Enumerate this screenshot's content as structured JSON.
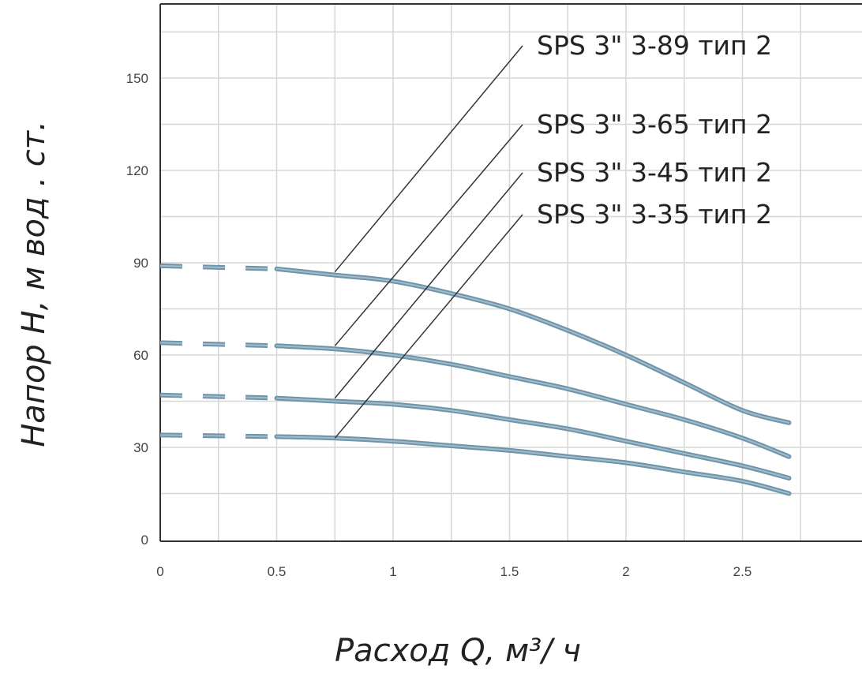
{
  "chart_data": {
    "type": "line",
    "title": "",
    "xlabel": "Расход  Q,  м³/ ч",
    "ylabel": "Напор  Н,  м вод . ст.",
    "xlim": [
      0,
      3
    ],
    "ylim": [
      0,
      175
    ],
    "x_ticks": [
      "0",
      "0.5",
      "1",
      "1.5",
      "2",
      "2.5"
    ],
    "y_ticks": [
      "0",
      "30",
      "60",
      "90",
      "120",
      "150"
    ],
    "grid": true,
    "dashed_segment_x": [
      0,
      0.5
    ],
    "colors": {
      "curve": "#6f93a8",
      "curve_core": "#9fbccc",
      "grid": "#d6d6d6",
      "axis": "#333333",
      "leader": "#333333"
    },
    "series": [
      {
        "name": "SPS 3\" 3-89 тип 2",
        "x": [
          0,
          0.5,
          0.75,
          1.0,
          1.25,
          1.5,
          1.75,
          2.0,
          2.25,
          2.5,
          2.7
        ],
        "y": [
          89,
          88,
          86,
          84,
          80,
          75,
          68,
          60,
          51,
          42,
          38
        ]
      },
      {
        "name": "SPS 3\" 3-65 тип 2",
        "x": [
          0,
          0.5,
          0.75,
          1.0,
          1.25,
          1.5,
          1.75,
          2.0,
          2.25,
          2.5,
          2.7
        ],
        "y": [
          64,
          63,
          62,
          60,
          57,
          53,
          49,
          44,
          39,
          33,
          27
        ]
      },
      {
        "name": "SPS 3\" 3-45 тип 2",
        "x": [
          0,
          0.5,
          0.75,
          1.0,
          1.25,
          1.5,
          1.75,
          2.0,
          2.25,
          2.5,
          2.7
        ],
        "y": [
          47,
          46,
          45,
          44,
          42,
          39,
          36,
          32,
          28,
          24,
          20
        ]
      },
      {
        "name": "SPS 3\" 3-35 тип 2",
        "x": [
          0,
          0.5,
          0.75,
          1.0,
          1.25,
          1.5,
          1.75,
          2.0,
          2.25,
          2.5,
          2.7
        ],
        "y": [
          34,
          33.5,
          33,
          32,
          30.5,
          29,
          27,
          25,
          22,
          19,
          15
        ]
      }
    ],
    "legend_leaders": [
      {
        "series": 0,
        "from": [
          0.75,
          87
        ]
      },
      {
        "series": 1,
        "from": [
          0.75,
          63
        ]
      },
      {
        "series": 2,
        "from": [
          0.75,
          46
        ]
      },
      {
        "series": 3,
        "from": [
          0.75,
          33
        ]
      }
    ]
  }
}
